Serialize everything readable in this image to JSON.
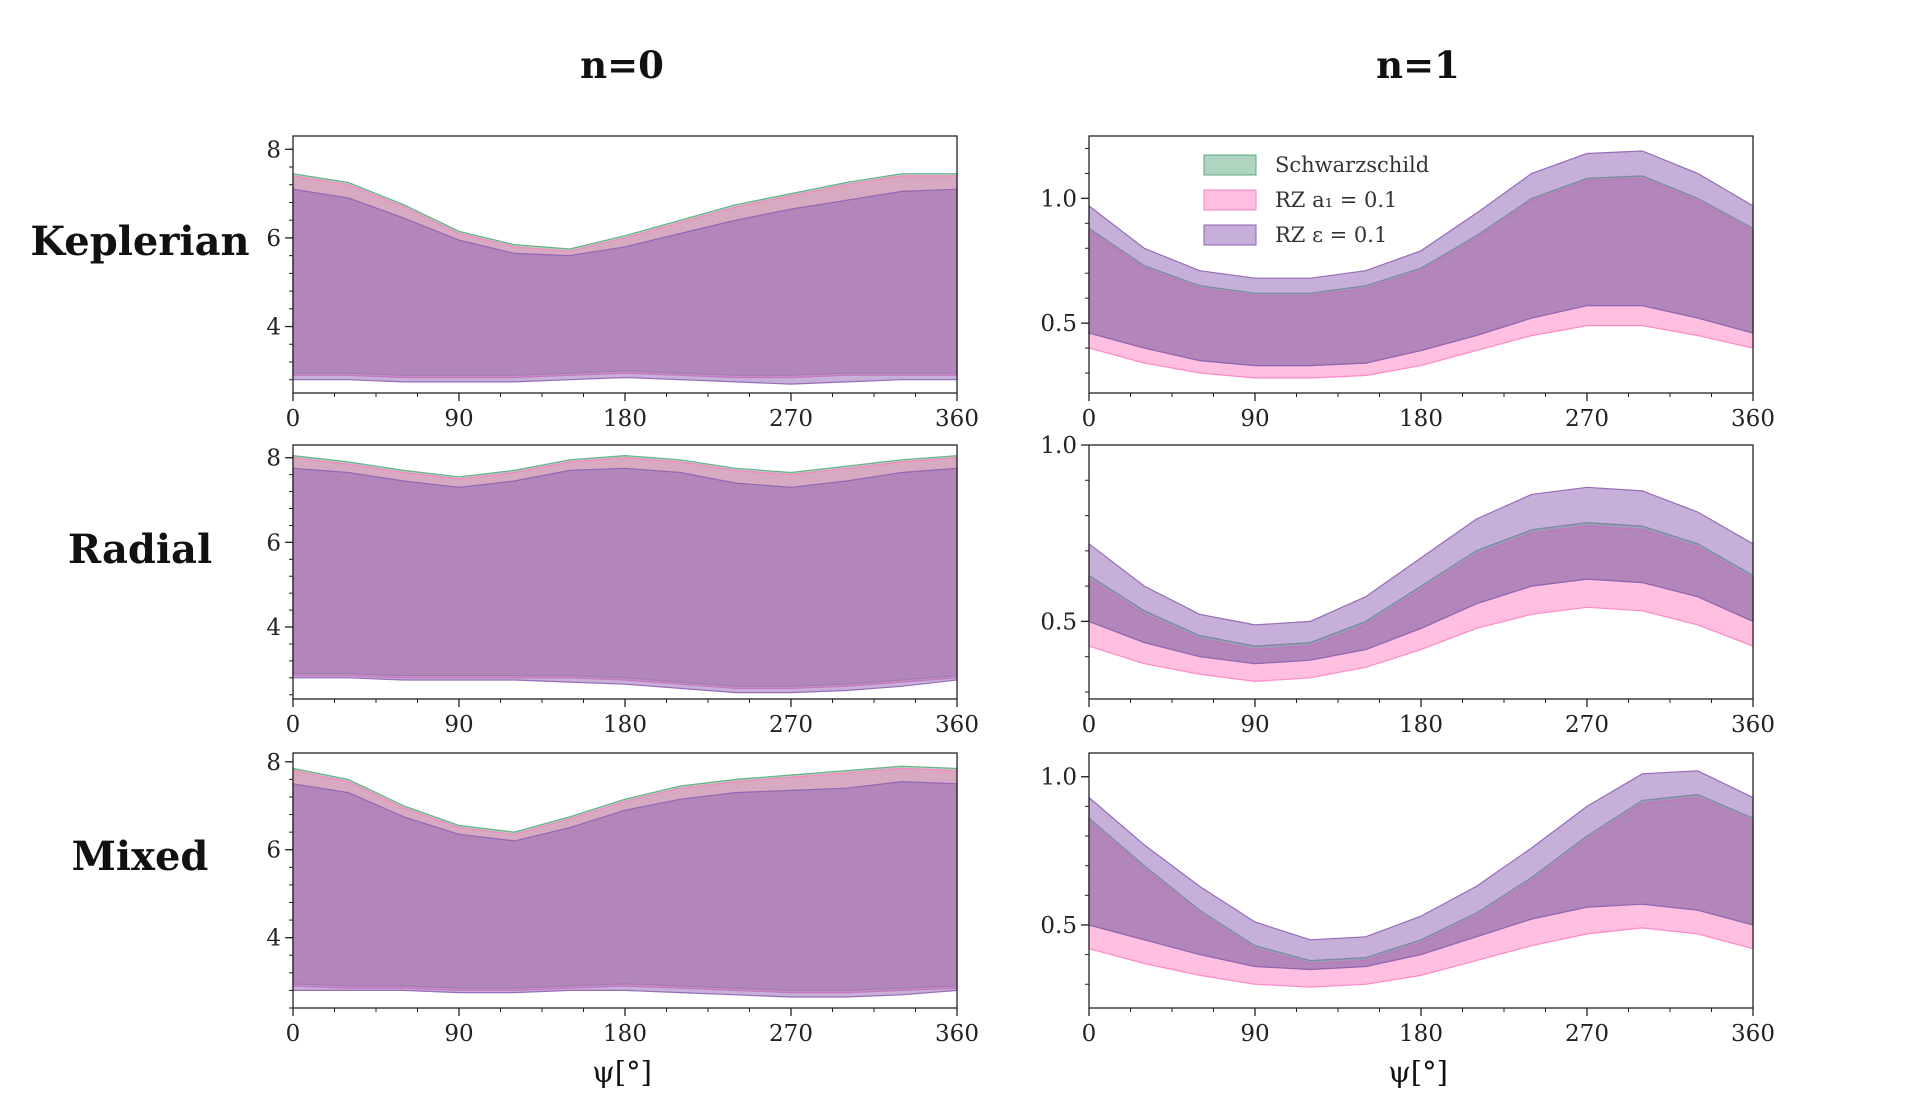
{
  "figure": {
    "column_titles": [
      "n=0",
      "n=1"
    ],
    "row_labels": [
      "Keplerian",
      "Radial",
      "Mixed"
    ],
    "xlabel": "ψ[°]",
    "legend": [
      {
        "label": "Schwarzschild",
        "color": "#5fa97f"
      },
      {
        "label": "RZ a₁ = 0.1",
        "color": "#ff7fc3"
      },
      {
        "label": "RZ ε = 0.1",
        "color": "#8e61b3"
      }
    ]
  },
  "chart_data": [
    {
      "id": "keplerian-n0",
      "type": "area",
      "row": "Keplerian",
      "column": "n=0",
      "xlim": [
        0,
        360
      ],
      "ylim": [
        2.5,
        8.3
      ],
      "xticks": [
        0,
        90,
        180,
        270,
        360
      ],
      "yticks": [
        4,
        6,
        8
      ],
      "x": [
        0,
        30,
        60,
        90,
        120,
        150,
        180,
        210,
        240,
        270,
        300,
        330,
        360
      ],
      "series": [
        {
          "name": "Schwarzschild",
          "upper": [
            7.45,
            7.25,
            6.75,
            6.15,
            5.85,
            5.75,
            6.05,
            6.4,
            6.75,
            7.0,
            7.25,
            7.45,
            7.45
          ],
          "lower": [
            2.95,
            2.95,
            2.9,
            2.9,
            2.9,
            2.95,
            3.0,
            2.95,
            2.9,
            2.9,
            2.95,
            2.95,
            2.95
          ]
        },
        {
          "name": "RZ a₁ = 0.1",
          "upper": [
            7.4,
            7.2,
            6.7,
            6.1,
            5.8,
            5.7,
            6.0,
            6.35,
            6.7,
            6.95,
            7.2,
            7.4,
            7.4
          ],
          "lower": [
            2.9,
            2.9,
            2.85,
            2.85,
            2.85,
            2.9,
            2.95,
            2.9,
            2.85,
            2.85,
            2.9,
            2.9,
            2.9
          ]
        },
        {
          "name": "RZ ε = 0.1",
          "upper": [
            7.1,
            6.9,
            6.45,
            5.95,
            5.65,
            5.6,
            5.8,
            6.1,
            6.4,
            6.65,
            6.85,
            7.05,
            7.1
          ],
          "lower": [
            2.8,
            2.8,
            2.75,
            2.75,
            2.75,
            2.8,
            2.85,
            2.8,
            2.75,
            2.7,
            2.75,
            2.8,
            2.8
          ]
        }
      ]
    },
    {
      "id": "keplerian-n1",
      "type": "area",
      "row": "Keplerian",
      "column": "n=1",
      "xlim": [
        0,
        360
      ],
      "ylim": [
        0.22,
        1.25
      ],
      "xticks": [
        0,
        90,
        180,
        270,
        360
      ],
      "yticks": [
        0.5,
        1.0
      ],
      "x": [
        0,
        30,
        60,
        90,
        120,
        150,
        180,
        210,
        240,
        270,
        300,
        330,
        360
      ],
      "series": [
        {
          "name": "Schwarzschild",
          "upper": [
            0.88,
            0.73,
            0.65,
            0.62,
            0.62,
            0.65,
            0.72,
            0.85,
            1.0,
            1.08,
            1.09,
            1.0,
            0.88
          ],
          "lower": [
            0.46,
            0.4,
            0.35,
            0.33,
            0.33,
            0.34,
            0.39,
            0.45,
            0.52,
            0.57,
            0.57,
            0.52,
            0.46
          ]
        },
        {
          "name": "RZ a₁ = 0.1",
          "upper": [
            0.87,
            0.72,
            0.64,
            0.61,
            0.61,
            0.64,
            0.71,
            0.84,
            0.99,
            1.07,
            1.08,
            0.99,
            0.87
          ],
          "lower": [
            0.4,
            0.34,
            0.3,
            0.28,
            0.28,
            0.29,
            0.33,
            0.39,
            0.45,
            0.49,
            0.49,
            0.45,
            0.4
          ]
        },
        {
          "name": "RZ ε = 0.1",
          "upper": [
            0.97,
            0.8,
            0.71,
            0.68,
            0.68,
            0.71,
            0.79,
            0.94,
            1.1,
            1.18,
            1.19,
            1.1,
            0.97
          ],
          "lower": [
            0.46,
            0.4,
            0.35,
            0.33,
            0.33,
            0.34,
            0.39,
            0.45,
            0.52,
            0.57,
            0.57,
            0.52,
            0.46
          ]
        }
      ]
    },
    {
      "id": "radial-n0",
      "type": "area",
      "row": "Radial",
      "column": "n=0",
      "xlim": [
        0,
        360
      ],
      "ylim": [
        2.3,
        8.3
      ],
      "xticks": [
        0,
        90,
        180,
        270,
        360
      ],
      "yticks": [
        4,
        6,
        8
      ],
      "x": [
        0,
        30,
        60,
        90,
        120,
        150,
        180,
        210,
        240,
        270,
        300,
        330,
        360
      ],
      "series": [
        {
          "name": "Schwarzschild",
          "upper": [
            8.05,
            7.9,
            7.7,
            7.55,
            7.7,
            7.95,
            8.05,
            7.95,
            7.75,
            7.65,
            7.8,
            7.95,
            8.05
          ],
          "lower": [
            2.9,
            2.9,
            2.85,
            2.85,
            2.85,
            2.85,
            2.8,
            2.7,
            2.6,
            2.6,
            2.65,
            2.75,
            2.85
          ]
        },
        {
          "name": "RZ a₁ = 0.1",
          "upper": [
            8.0,
            7.85,
            7.65,
            7.5,
            7.65,
            7.9,
            8.0,
            7.9,
            7.7,
            7.6,
            7.75,
            7.9,
            8.0
          ],
          "lower": [
            2.85,
            2.85,
            2.8,
            2.8,
            2.8,
            2.8,
            2.75,
            2.65,
            2.55,
            2.55,
            2.6,
            2.7,
            2.8
          ]
        },
        {
          "name": "RZ ε = 0.1",
          "upper": [
            7.75,
            7.65,
            7.45,
            7.3,
            7.45,
            7.7,
            7.75,
            7.65,
            7.4,
            7.3,
            7.45,
            7.65,
            7.75
          ],
          "lower": [
            2.8,
            2.8,
            2.75,
            2.75,
            2.75,
            2.7,
            2.65,
            2.55,
            2.45,
            2.45,
            2.5,
            2.6,
            2.75
          ]
        }
      ]
    },
    {
      "id": "radial-n1",
      "type": "area",
      "row": "Radial",
      "column": "n=1",
      "xlim": [
        0,
        360
      ],
      "ylim": [
        0.28,
        1.0
      ],
      "xticks": [
        0,
        90,
        180,
        270,
        360
      ],
      "yticks": [
        0.5,
        1.0
      ],
      "x": [
        0,
        30,
        60,
        90,
        120,
        150,
        180,
        210,
        240,
        270,
        300,
        330,
        360
      ],
      "series": [
        {
          "name": "Schwarzschild",
          "upper": [
            0.63,
            0.53,
            0.46,
            0.43,
            0.44,
            0.5,
            0.6,
            0.7,
            0.76,
            0.78,
            0.77,
            0.72,
            0.63
          ],
          "lower": [
            0.5,
            0.44,
            0.4,
            0.38,
            0.39,
            0.42,
            0.48,
            0.55,
            0.6,
            0.62,
            0.61,
            0.57,
            0.5
          ]
        },
        {
          "name": "RZ a₁ = 0.1",
          "upper": [
            0.62,
            0.52,
            0.45,
            0.42,
            0.43,
            0.49,
            0.59,
            0.69,
            0.75,
            0.77,
            0.76,
            0.71,
            0.62
          ],
          "lower": [
            0.43,
            0.38,
            0.35,
            0.33,
            0.34,
            0.37,
            0.42,
            0.48,
            0.52,
            0.54,
            0.53,
            0.49,
            0.43
          ]
        },
        {
          "name": "RZ ε = 0.1",
          "upper": [
            0.72,
            0.6,
            0.52,
            0.49,
            0.5,
            0.57,
            0.68,
            0.79,
            0.86,
            0.88,
            0.87,
            0.81,
            0.72
          ],
          "lower": [
            0.5,
            0.44,
            0.4,
            0.38,
            0.39,
            0.42,
            0.48,
            0.55,
            0.6,
            0.62,
            0.61,
            0.57,
            0.5
          ]
        }
      ]
    },
    {
      "id": "mixed-n0",
      "type": "area",
      "row": "Mixed",
      "column": "n=0",
      "xlim": [
        0,
        360
      ],
      "ylim": [
        2.4,
        8.2
      ],
      "xticks": [
        0,
        90,
        180,
        270,
        360
      ],
      "yticks": [
        4,
        6,
        8
      ],
      "x": [
        0,
        30,
        60,
        90,
        120,
        150,
        180,
        210,
        240,
        270,
        300,
        330,
        360
      ],
      "series": [
        {
          "name": "Schwarzschild",
          "upper": [
            7.85,
            7.6,
            7.0,
            6.55,
            6.4,
            6.75,
            7.15,
            7.45,
            7.6,
            7.7,
            7.8,
            7.9,
            7.85
          ],
          "lower": [
            2.95,
            2.9,
            2.9,
            2.85,
            2.85,
            2.9,
            2.95,
            2.9,
            2.85,
            2.8,
            2.8,
            2.85,
            2.9
          ]
        },
        {
          "name": "RZ a₁ = 0.1",
          "upper": [
            7.8,
            7.55,
            6.95,
            6.5,
            6.35,
            6.7,
            7.1,
            7.4,
            7.55,
            7.65,
            7.75,
            7.85,
            7.8
          ],
          "lower": [
            2.9,
            2.85,
            2.85,
            2.8,
            2.8,
            2.85,
            2.9,
            2.85,
            2.8,
            2.75,
            2.75,
            2.8,
            2.85
          ]
        },
        {
          "name": "RZ ε = 0.1",
          "upper": [
            7.5,
            7.3,
            6.75,
            6.35,
            6.2,
            6.5,
            6.9,
            7.15,
            7.3,
            7.35,
            7.4,
            7.55,
            7.5
          ],
          "lower": [
            2.8,
            2.8,
            2.8,
            2.75,
            2.75,
            2.8,
            2.8,
            2.75,
            2.7,
            2.65,
            2.65,
            2.7,
            2.8
          ]
        }
      ]
    },
    {
      "id": "mixed-n1",
      "type": "area",
      "row": "Mixed",
      "column": "n=1",
      "xlim": [
        0,
        360
      ],
      "ylim": [
        0.22,
        1.08
      ],
      "xticks": [
        0,
        90,
        180,
        270,
        360
      ],
      "yticks": [
        0.5,
        1.0
      ],
      "x": [
        0,
        30,
        60,
        90,
        120,
        150,
        180,
        210,
        240,
        270,
        300,
        330,
        360
      ],
      "series": [
        {
          "name": "Schwarzschild",
          "upper": [
            0.86,
            0.7,
            0.55,
            0.43,
            0.38,
            0.39,
            0.45,
            0.54,
            0.66,
            0.8,
            0.92,
            0.94,
            0.86
          ],
          "lower": [
            0.5,
            0.45,
            0.4,
            0.36,
            0.35,
            0.36,
            0.4,
            0.46,
            0.52,
            0.56,
            0.57,
            0.55,
            0.5
          ]
        },
        {
          "name": "RZ a₁ = 0.1",
          "upper": [
            0.85,
            0.69,
            0.54,
            0.42,
            0.37,
            0.38,
            0.44,
            0.53,
            0.65,
            0.79,
            0.91,
            0.93,
            0.85
          ],
          "lower": [
            0.42,
            0.37,
            0.33,
            0.3,
            0.29,
            0.3,
            0.33,
            0.38,
            0.43,
            0.47,
            0.49,
            0.47,
            0.42
          ]
        },
        {
          "name": "RZ ε = 0.1",
          "upper": [
            0.93,
            0.77,
            0.63,
            0.51,
            0.45,
            0.46,
            0.53,
            0.63,
            0.76,
            0.9,
            1.01,
            1.02,
            0.93
          ],
          "lower": [
            0.5,
            0.45,
            0.4,
            0.36,
            0.35,
            0.36,
            0.4,
            0.46,
            0.52,
            0.56,
            0.57,
            0.55,
            0.5
          ]
        }
      ]
    }
  ]
}
